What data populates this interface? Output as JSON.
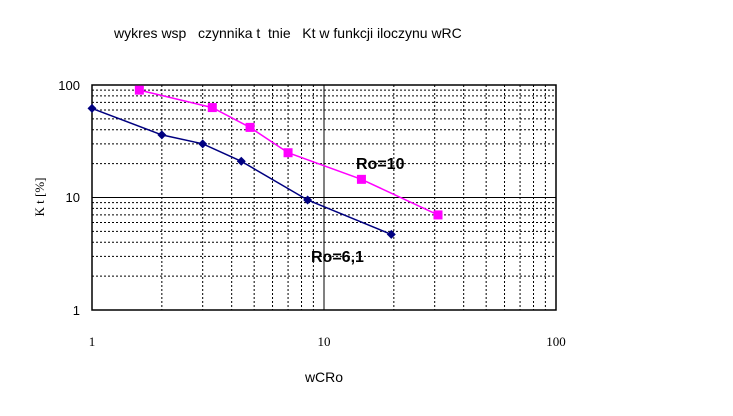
{
  "chart_data": {
    "type": "line",
    "title": "wykres wsp   czynnika t  tnie   Kt w funkcji iloczynu wRC",
    "xlabel": "wCRo",
    "ylabel": "K t [%]",
    "x_scale": "log",
    "y_scale": "log",
    "xlim": [
      1,
      100
    ],
    "ylim": [
      1,
      100
    ],
    "x_ticks": [
      "1",
      "10",
      "100"
    ],
    "y_ticks": [
      "1",
      "10",
      "100"
    ],
    "grid": true,
    "series": [
      {
        "name": "Ro=6,1",
        "color": "#000080",
        "marker": "diamond",
        "points": [
          {
            "x": 1.0,
            "y": 62
          },
          {
            "x": 2.0,
            "y": 36
          },
          {
            "x": 3.0,
            "y": 30
          },
          {
            "x": 4.4,
            "y": 21
          },
          {
            "x": 8.5,
            "y": 9.5
          },
          {
            "x": 19.5,
            "y": 4.7
          }
        ]
      },
      {
        "name": "Ro=10",
        "color": "#ff00ff",
        "marker": "square",
        "points": [
          {
            "x": 1.6,
            "y": 90
          },
          {
            "x": 3.3,
            "y": 63
          },
          {
            "x": 4.8,
            "y": 42
          },
          {
            "x": 7.0,
            "y": 25
          },
          {
            "x": 14.5,
            "y": 14.5
          },
          {
            "x": 31.0,
            "y": 7
          }
        ]
      }
    ]
  }
}
